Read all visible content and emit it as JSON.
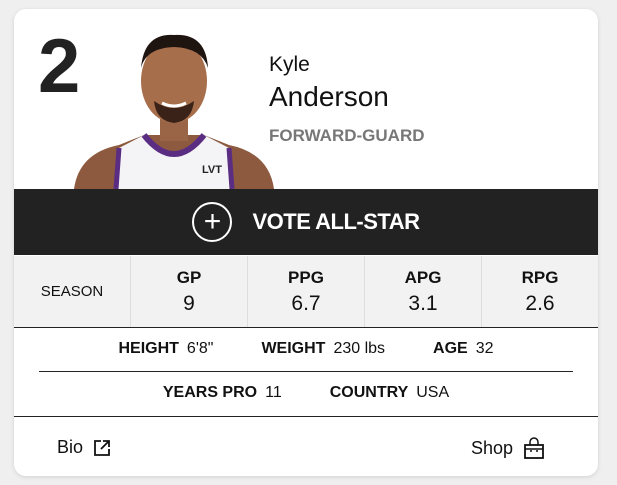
{
  "player": {
    "number": "2",
    "first_name": "Kyle",
    "last_name": "Anderson",
    "position": "FORWARD-GUARD",
    "jersey_text": "LVT"
  },
  "vote": {
    "label": "VOTE ALL-STAR",
    "icon": "plus-circle-icon"
  },
  "stats": {
    "row_label": "SEASON",
    "columns": [
      {
        "label": "GP",
        "value": "9"
      },
      {
        "label": "PPG",
        "value": "6.7"
      },
      {
        "label": "APG",
        "value": "3.1"
      },
      {
        "label": "RPG",
        "value": "2.6"
      }
    ]
  },
  "info": {
    "height_label": "HEIGHT",
    "height": "6'8\"",
    "weight_label": "WEIGHT",
    "weight": "230 lbs",
    "age_label": "AGE",
    "age": "32",
    "years_pro_label": "YEARS PRO",
    "years_pro": "11",
    "country_label": "COUNTRY",
    "country": "USA"
  },
  "footer": {
    "bio_label": "Bio",
    "shop_label": "Shop"
  },
  "colors": {
    "vote_bar": "#222222",
    "jersey_trim": "#5a2d82"
  }
}
